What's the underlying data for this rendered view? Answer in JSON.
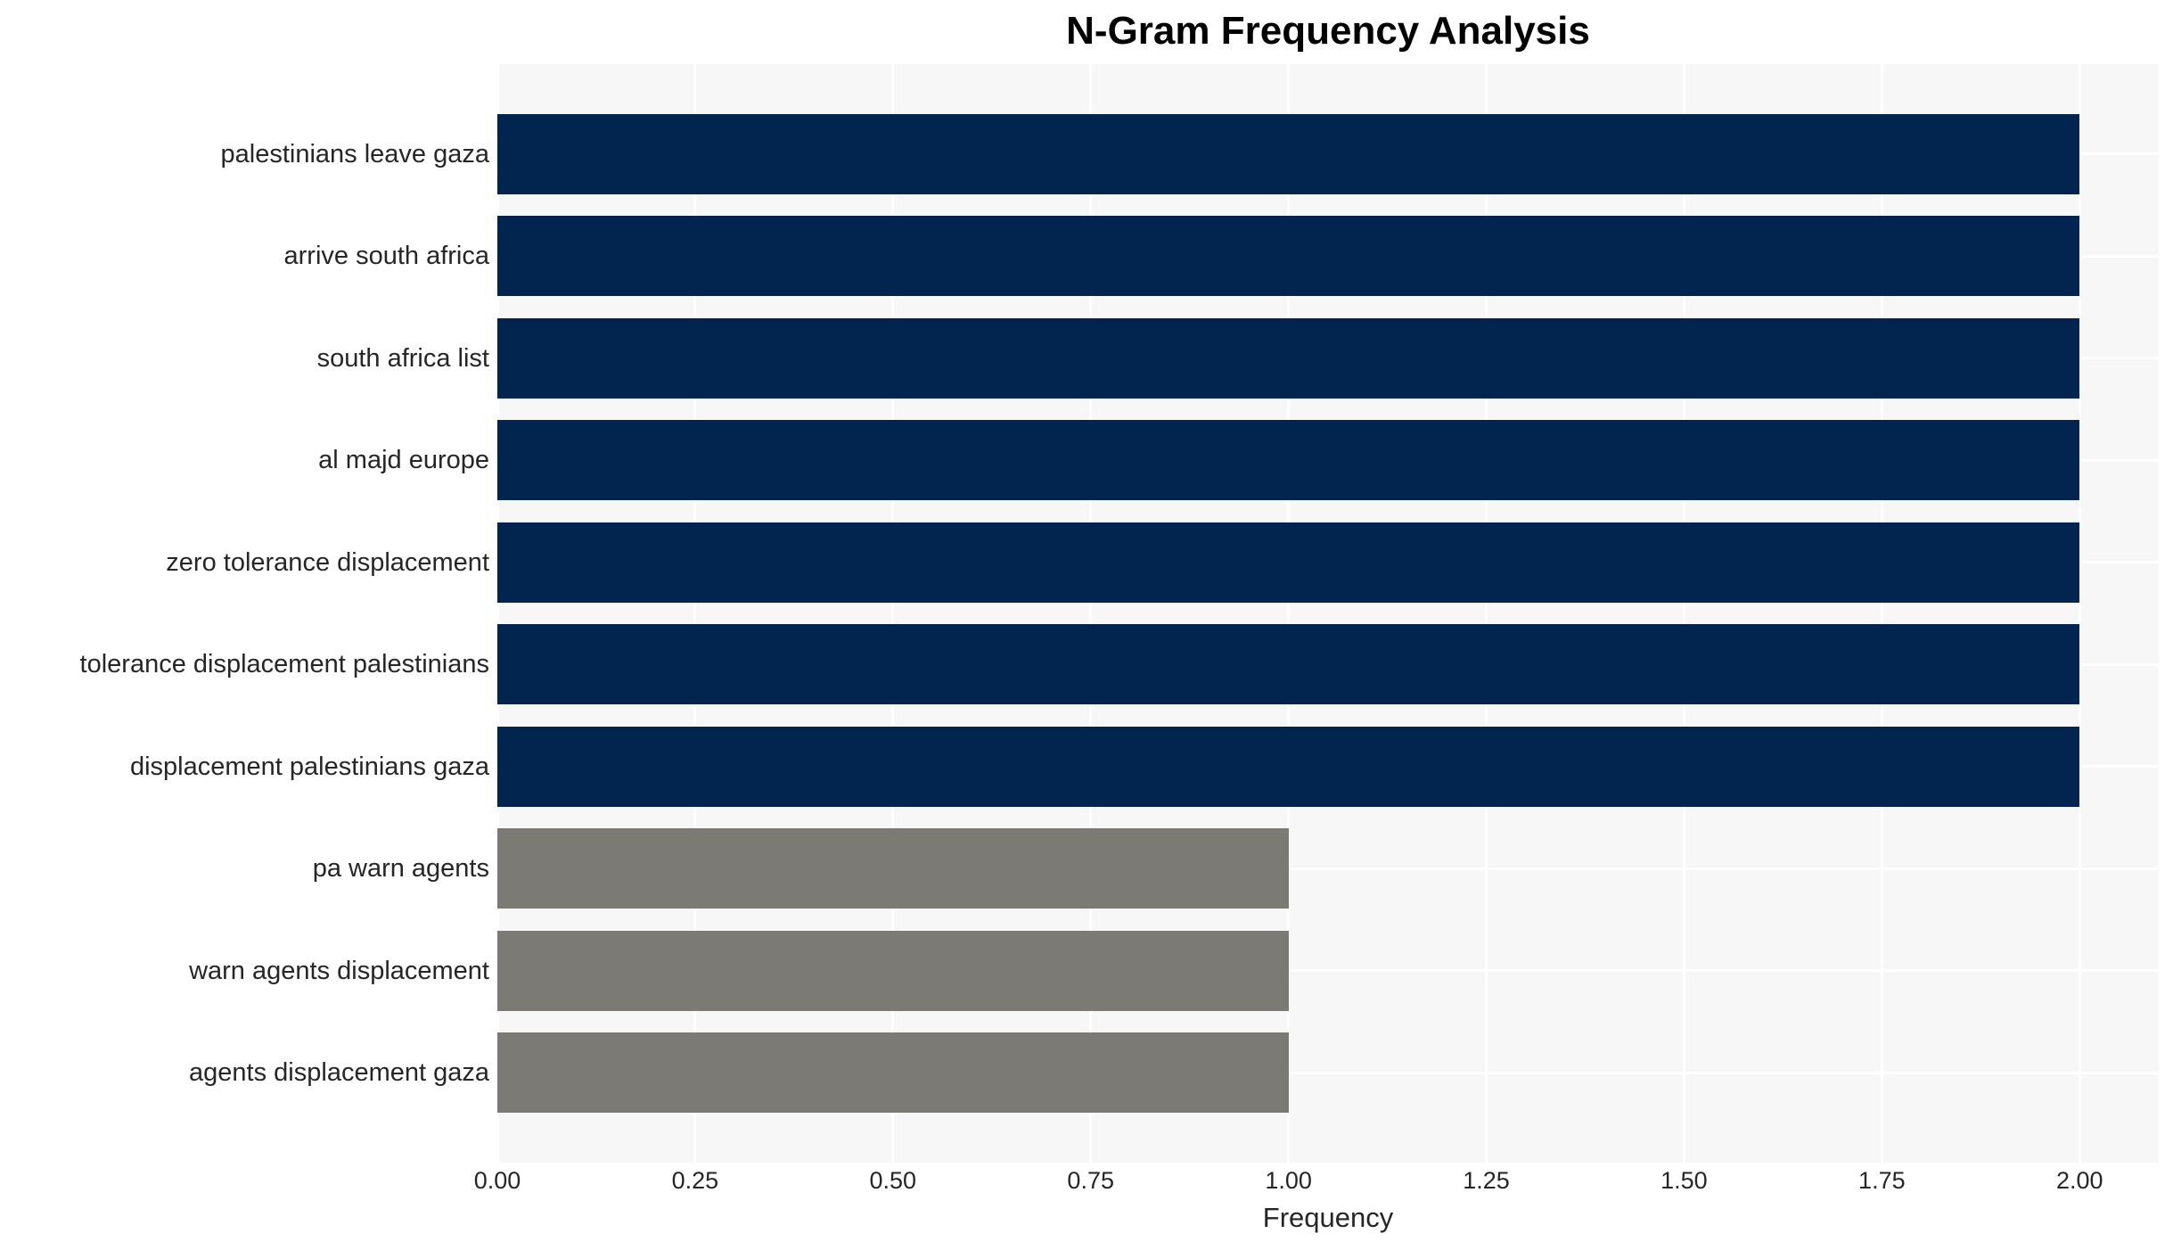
{
  "chart_data": {
    "type": "bar",
    "orientation": "horizontal",
    "title": "N-Gram Frequency Analysis",
    "xlabel": "Frequency",
    "ylabel": "",
    "categories": [
      "palestinians leave gaza",
      "arrive south africa",
      "south africa list",
      "al majd europe",
      "zero tolerance displacement",
      "tolerance displacement palestinians",
      "displacement palestinians gaza",
      "pa warn agents",
      "warn agents displacement",
      "agents displacement gaza"
    ],
    "values": [
      2,
      2,
      2,
      2,
      2,
      2,
      2,
      1,
      1,
      1
    ],
    "bar_colors": [
      "#02254f",
      "#02254f",
      "#02254f",
      "#02254f",
      "#02254f",
      "#02254f",
      "#02254f",
      "#7b7a75",
      "#7b7a75",
      "#7b7a75"
    ],
    "xlim": [
      0,
      2.1
    ],
    "xticks": [
      0,
      0.25,
      0.5,
      0.75,
      1.0,
      1.25,
      1.5,
      1.75,
      2.0
    ],
    "xtick_labels": [
      "0.00",
      "0.25",
      "0.50",
      "0.75",
      "1.00",
      "1.25",
      "1.50",
      "1.75",
      "2.00"
    ],
    "grid": true,
    "legend": "none",
    "colors": {
      "plot_background": "#f7f7f7",
      "grid_line": "#ffffff",
      "tick_text": "#262626",
      "title_text": "#000000"
    }
  }
}
